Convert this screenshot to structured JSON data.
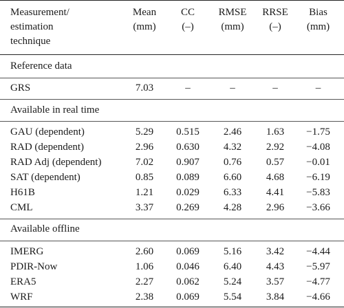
{
  "header": {
    "col0": [
      "Measurement/",
      "estimation",
      "technique"
    ],
    "col1": [
      "Mean",
      "(mm)"
    ],
    "col2": [
      "CC",
      "(–)"
    ],
    "col3": [
      "RMSE",
      "(mm)"
    ],
    "col4": [
      "RRSE",
      "(–)"
    ],
    "col5": [
      "Bias",
      "(mm)"
    ]
  },
  "sections": [
    {
      "title": "Reference data",
      "rows": [
        [
          "GRS",
          "7.03",
          "–",
          "–",
          "–",
          "–"
        ]
      ]
    },
    {
      "title": "Available in real time",
      "rows": [
        [
          "GAU (dependent)",
          "5.29",
          "0.515",
          "2.46",
          "1.63",
          "−1.75"
        ],
        [
          "RAD (dependent)",
          "2.96",
          "0.630",
          "4.32",
          "2.92",
          "−4.08"
        ],
        [
          "RAD Adj (dependent)",
          "7.02",
          "0.907",
          "0.76",
          "0.57",
          "−0.01"
        ],
        [
          "SAT (dependent)",
          "0.85",
          "0.089",
          "6.60",
          "4.68",
          "−6.19"
        ],
        [
          "H61B",
          "1.21",
          "0.029",
          "6.33",
          "4.41",
          "−5.83"
        ],
        [
          "CML",
          "3.37",
          "0.269",
          "4.28",
          "2.96",
          "−3.66"
        ]
      ]
    },
    {
      "title": "Available offline",
      "rows": [
        [
          "IMERG",
          "2.60",
          "0.069",
          "5.16",
          "3.42",
          "−4.44"
        ],
        [
          "PDIR-Now",
          "1.06",
          "0.046",
          "6.40",
          "4.43",
          "−5.97"
        ],
        [
          "ERA5",
          "2.27",
          "0.062",
          "5.24",
          "3.57",
          "−4.77"
        ],
        [
          "WRF",
          "2.38",
          "0.069",
          "5.54",
          "3.84",
          "−4.66"
        ]
      ]
    }
  ]
}
